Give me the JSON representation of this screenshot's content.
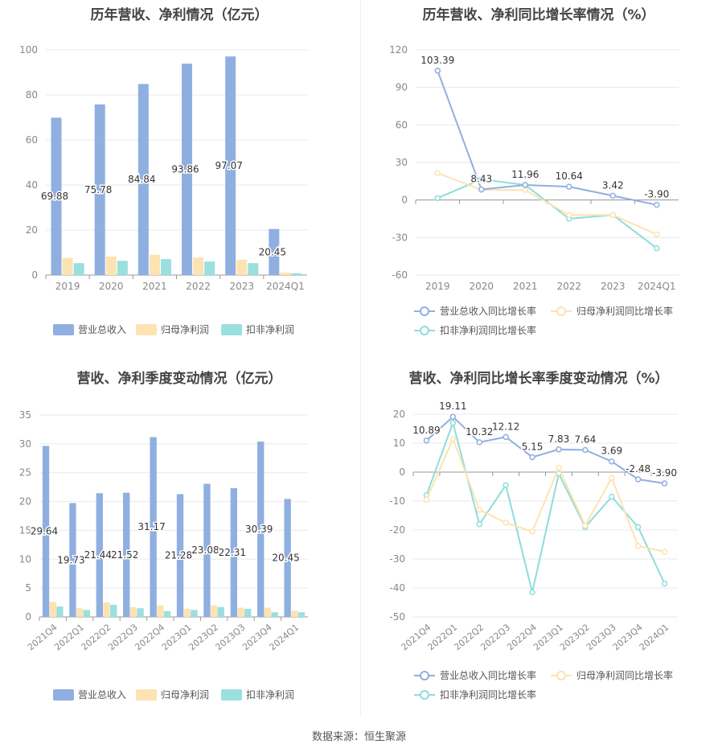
{
  "source": "数据来源：恒生聚源",
  "colors": {
    "revenue": "#8fafe0",
    "net": "#fde3b1",
    "deducted": "#99e0df",
    "line_revenue": "#8fafe0",
    "line_net": "#fde3b1",
    "line_deducted": "#8fdcdb"
  },
  "chart_data": [
    {
      "type": "bar",
      "title": "历年营收、净利情况（亿元）",
      "categories": [
        "2019",
        "2020",
        "2021",
        "2022",
        "2023",
        "2024Q1"
      ],
      "ylim": [
        0,
        100
      ],
      "yticks": [
        "0",
        "20",
        "40",
        "60",
        "80",
        "100"
      ],
      "legend_position": "bottom",
      "series": [
        {
          "name": "营业总收入",
          "values": [
            69.88,
            75.78,
            84.84,
            93.86,
            97.07,
            20.45
          ],
          "labels": [
            "69.88",
            "75.78",
            "84.84",
            "93.86",
            "97.07",
            "20.45"
          ]
        },
        {
          "name": "归母净利润",
          "values": [
            7.6,
            8.2,
            9.0,
            7.8,
            6.8,
            1.1
          ]
        },
        {
          "name": "扣非净利润",
          "values": [
            5.3,
            6.3,
            7.1,
            6.0,
            5.3,
            0.8
          ]
        }
      ]
    },
    {
      "type": "line",
      "title": "历年营收、净利同比增长率情况（%）",
      "categories": [
        "2019",
        "2020",
        "2021",
        "2022",
        "2023",
        "2024Q1"
      ],
      "ylim": [
        -60,
        120
      ],
      "yticks": [
        "-60",
        "-30",
        "0",
        "30",
        "60",
        "90",
        "120"
      ],
      "legend_position": "bottom",
      "series": [
        {
          "name": "营业总收入同比增长率",
          "values": [
            103.39,
            8.43,
            11.96,
            10.64,
            3.42,
            -3.9
          ],
          "labels": [
            "103.39",
            "8.43",
            "11.96",
            "10.64",
            "3.42",
            "-3.90"
          ]
        },
        {
          "name": "归母净利润同比增长率",
          "values": [
            21.5,
            8.0,
            8.0,
            -12.0,
            -12.0,
            -27.5
          ]
        },
        {
          "name": "扣非净利润同比增长率",
          "values": [
            1.5,
            16.5,
            12.0,
            -15.0,
            -12.0,
            -38.5
          ]
        }
      ]
    },
    {
      "type": "bar",
      "title": "营收、净利季度变动情况（亿元）",
      "categories": [
        "2021Q4",
        "2022Q1",
        "2022Q2",
        "2022Q3",
        "2022Q4",
        "2023Q1",
        "2023Q2",
        "2023Q3",
        "2023Q4",
        "2024Q1"
      ],
      "ylim": [
        0,
        35
      ],
      "yticks": [
        "0",
        "5",
        "10",
        "15",
        "20",
        "25",
        "30",
        "35"
      ],
      "legend_position": "bottom",
      "series": [
        {
          "name": "营业总收入",
          "values": [
            29.64,
            19.73,
            21.44,
            21.52,
            31.17,
            21.28,
            23.08,
            22.31,
            30.39,
            20.45
          ],
          "labels": [
            "29.64",
            "19.73",
            "21.44",
            "21.52",
            "31.17",
            "21.28",
            "23.08",
            "22.31",
            "30.39",
            "20.45"
          ]
        },
        {
          "name": "归母净利润",
          "values": [
            2.6,
            1.5,
            2.5,
            1.7,
            2.0,
            1.4,
            2.0,
            1.6,
            1.6,
            1.1
          ]
        },
        {
          "name": "扣非净利润",
          "values": [
            1.8,
            1.2,
            2.1,
            1.5,
            1.0,
            1.2,
            1.7,
            1.4,
            0.8,
            0.8
          ]
        }
      ]
    },
    {
      "type": "line",
      "title": "营收、净利同比增长率季度变动情况（%）",
      "categories": [
        "2021Q4",
        "2022Q1",
        "2022Q2",
        "2022Q3",
        "2022Q4",
        "2023Q1",
        "2023Q2",
        "2023Q3",
        "2023Q4",
        "2024Q1"
      ],
      "ylim": [
        -50,
        20
      ],
      "yticks": [
        "-50",
        "-40",
        "-30",
        "-20",
        "-10",
        "0",
        "10",
        "20"
      ],
      "legend_position": "bottom",
      "series": [
        {
          "name": "营业总收入同比增长率",
          "values": [
            10.89,
            19.11,
            10.32,
            12.12,
            5.15,
            7.83,
            7.64,
            3.69,
            -2.48,
            -3.9
          ],
          "labels": [
            "10.89",
            "19.11",
            "10.32",
            "12.12",
            "5.15",
            "7.83",
            "7.64",
            "3.69",
            "-2.48",
            "-3.90"
          ]
        },
        {
          "name": "归母净利润同比增长率",
          "values": [
            -9.5,
            11.5,
            -13.0,
            -17.5,
            -20.5,
            1.5,
            -18.5,
            -2.0,
            -25.5,
            -27.5
          ]
        },
        {
          "name": "扣非净利润同比增长率",
          "values": [
            -8.0,
            17.0,
            -18.0,
            -4.5,
            -41.5,
            -0.5,
            -19.0,
            -8.5,
            -19.0,
            -38.5
          ]
        }
      ]
    }
  ]
}
